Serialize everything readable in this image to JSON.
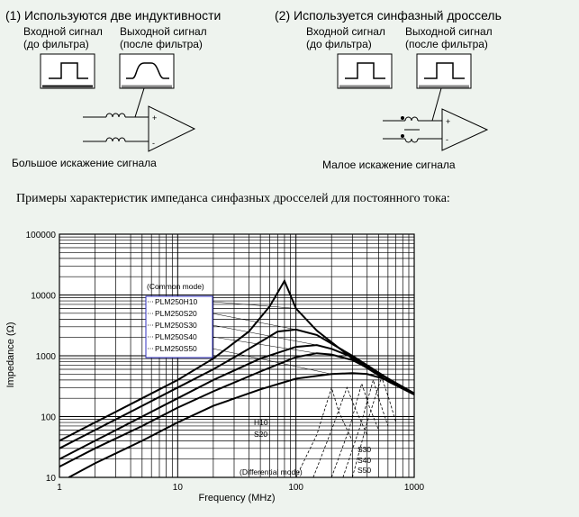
{
  "diagram": {
    "left": {
      "title": "(1) Используются две индуктивности",
      "input_label_1": "Входной сигнал",
      "input_label_2": "(до фильтра)",
      "output_label_1": "Выходной сигнал",
      "output_label_2": "(после фильтра)",
      "caption": "Большое искажение сигнала"
    },
    "right": {
      "title": "(2) Используется синфазный дроссель",
      "input_label_1": "Входной сигнал",
      "input_label_2": "(до фильтра)",
      "output_label_1": "Выходной сигнал",
      "output_label_2": "(после фильтра)",
      "caption": "Малое искажение сигнала"
    },
    "plus": "+",
    "minus": "-"
  },
  "examples_heading": "Примеры характеристик импеданса синфазных дросселей для постоянного тока:",
  "chart_data": {
    "type": "line",
    "xscale": "log",
    "yscale": "log",
    "xlim": [
      1,
      1000
    ],
    "ylim": [
      10,
      100000
    ],
    "xlabel": "Frequency (MHz)",
    "ylabel": "Impedance (Ω)",
    "x_ticks": [
      "1",
      "10",
      "100",
      "1000"
    ],
    "y_ticks": [
      "10",
      "100",
      "1000",
      "10000",
      "100000"
    ],
    "grid": true,
    "legend_title": "(Common mode)",
    "legend_position": "upper-left",
    "legend": [
      "PLM250H10",
      "PLM250S20",
      "PLM250S30",
      "PLM250S40",
      "PLM250S50"
    ],
    "differential_title": "(Differential mode)",
    "differential_labels": [
      "H10",
      "S20",
      "S30",
      "S40",
      "S50"
    ],
    "series": [
      {
        "name": "PLM250H10",
        "mode": "common",
        "x": [
          1,
          2,
          5,
          10,
          20,
          40,
          60,
          80,
          100,
          150,
          300,
          600,
          1000
        ],
        "y": [
          40,
          80,
          200,
          400,
          900,
          2500,
          6500,
          17000,
          6000,
          2600,
          900,
          380,
          230
        ]
      },
      {
        "name": "PLM250S20",
        "mode": "common",
        "x": [
          1,
          2,
          5,
          10,
          20,
          40,
          70,
          100,
          150,
          300,
          600,
          1000
        ],
        "y": [
          30,
          60,
          150,
          300,
          600,
          1300,
          2500,
          2700,
          2200,
          1000,
          420,
          240
        ]
      },
      {
        "name": "PLM250S30",
        "mode": "common",
        "x": [
          1,
          2,
          5,
          10,
          20,
          50,
          100,
          150,
          200,
          300,
          600,
          1000
        ],
        "y": [
          20,
          40,
          100,
          200,
          400,
          900,
          1400,
          1500,
          1300,
          950,
          420,
          240
        ]
      },
      {
        "name": "PLM250S40",
        "mode": "common",
        "x": [
          1,
          2,
          5,
          10,
          20,
          50,
          100,
          150,
          200,
          300,
          600,
          1000
        ],
        "y": [
          15,
          30,
          70,
          140,
          260,
          550,
          950,
          1100,
          1050,
          850,
          420,
          240
        ]
      },
      {
        "name": "PLM250S50",
        "mode": "common",
        "x": [
          1.2,
          2,
          5,
          10,
          20,
          50,
          100,
          200,
          300,
          400,
          600,
          1000
        ],
        "y": [
          10,
          17,
          40,
          80,
          150,
          280,
          420,
          500,
          520,
          500,
          400,
          240
        ]
      },
      {
        "name": "H10",
        "mode": "differential",
        "x": [
          100,
          150,
          200,
          230,
          300
        ],
        "y": [
          10,
          50,
          300,
          120,
          40
        ]
      },
      {
        "name": "S20",
        "mode": "differential",
        "x": [
          140,
          200,
          270,
          320,
          400
        ],
        "y": [
          10,
          60,
          300,
          130,
          50
        ]
      },
      {
        "name": "S30",
        "mode": "differential",
        "x": [
          200,
          280,
          360,
          420,
          500
        ],
        "y": [
          10,
          60,
          350,
          140,
          60
        ]
      },
      {
        "name": "S40",
        "mode": "differential",
        "x": [
          250,
          350,
          450,
          520,
          600
        ],
        "y": [
          10,
          70,
          400,
          160,
          70
        ]
      },
      {
        "name": "S50",
        "mode": "differential",
        "x": [
          300,
          400,
          530,
          620,
          700
        ],
        "y": [
          10,
          80,
          450,
          180,
          80
        ]
      }
    ]
  },
  "colors": {
    "background": "#eef3ee",
    "legend_border": "#3030c0",
    "line": "#000000"
  }
}
